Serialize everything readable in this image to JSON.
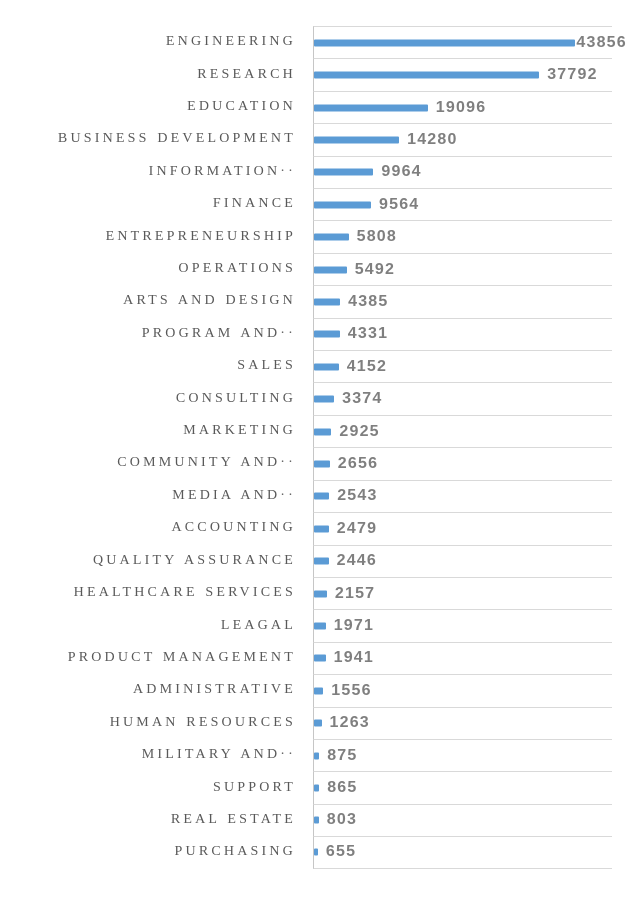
{
  "colors": {
    "bar": "#5b9bd5",
    "gridline": "#d9d9d9",
    "axis_line": "#c6c6c6",
    "category_label": "#595959",
    "value_label": "#7f7f7f",
    "background": "#ffffff"
  },
  "chart_data": {
    "type": "bar",
    "orientation": "horizontal",
    "title": "",
    "xlabel": "",
    "ylabel": "",
    "legend": "none",
    "value_axis_labels": "hidden",
    "gridlines": "category-separators",
    "data_labels_position": "outside-end",
    "xlim": [
      0,
      50000
    ],
    "categories": [
      "ENGINEERING",
      "RESEARCH",
      "EDUCATION",
      "BUSINESS DEVELOPMENT",
      "INFORMATION··",
      "FINANCE",
      "ENTREPRENEURSHIP",
      "OPERATIONS",
      "ARTS AND DESIGN",
      "PROGRAM AND··",
      "SALES",
      "CONSULTING",
      "MARKETING",
      "COMMUNITY AND··",
      "MEDIA AND··",
      "ACCOUNTING",
      "QUALITY ASSURANCE",
      "HEALTHCARE SERVICES",
      "LEAGAL",
      "PRODUCT MANAGEMENT",
      "ADMINISTRATIVE",
      "HUMAN RESOURCES",
      "MILITARY AND··",
      "SUPPORT",
      "REAL ESTATE",
      "PURCHASING"
    ],
    "values": [
      43856,
      37792,
      19096,
      14280,
      9964,
      9564,
      5808,
      5492,
      4385,
      4331,
      4152,
      3374,
      2925,
      2656,
      2543,
      2479,
      2446,
      2157,
      1971,
      1941,
      1556,
      1263,
      875,
      865,
      803,
      655
    ]
  }
}
